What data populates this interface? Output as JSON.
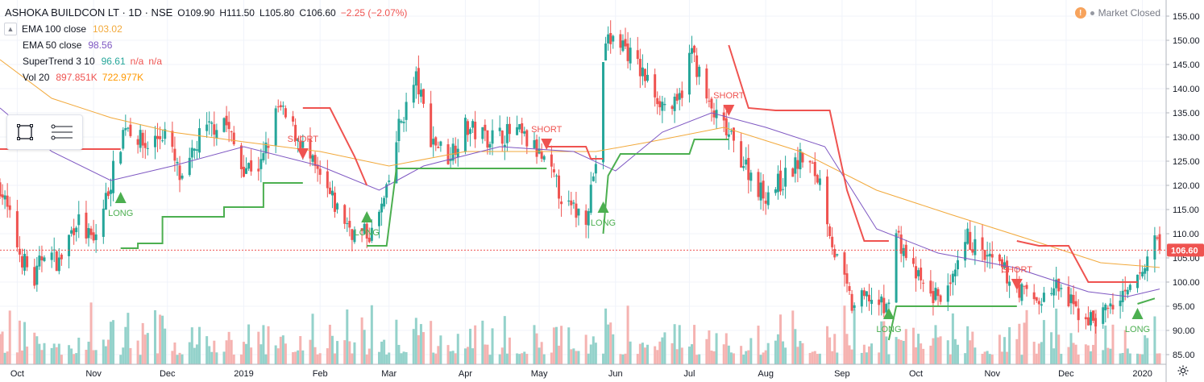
{
  "header": {
    "title": "ASHOKA BUILDCON LT · 1D · NSE",
    "ohlc": [
      {
        "k": "O",
        "v": "109.90"
      },
      {
        "k": "H",
        "v": "111.50"
      },
      {
        "k": "L",
        "v": "105.80"
      },
      {
        "k": "C",
        "v": "106.60"
      }
    ],
    "change": "−2.25 (−2.07%)",
    "change_color": "#ef5350"
  },
  "indicators": [
    {
      "label": "EMA 100 close",
      "values": [
        "103.02"
      ],
      "color": "#f2a93b"
    },
    {
      "label": "EMA 50 close",
      "values": [
        "98.56"
      ],
      "color": "#7e57c2"
    },
    {
      "label": "SuperTrend 3 10",
      "values": [
        "96.61",
        "n/a",
        "n/a"
      ],
      "colors": [
        "#26a69a",
        "#ef5350",
        "#ef5350"
      ]
    },
    {
      "label": "Vol 20",
      "values": [
        "897.851K",
        "722.977K"
      ],
      "colors": [
        "#ef5350",
        "#ff9800"
      ]
    }
  ],
  "status": {
    "market": "Market Closed"
  },
  "icons": {
    "rectangle_tool": "rectangle-icon",
    "lines_tool": "lines-icon",
    "settings": "gear-icon"
  },
  "colors": {
    "up": "#26a69a",
    "down": "#ef5350",
    "ema100": "#f2a93b",
    "ema50": "#7e57c2",
    "st_up": "#4caf50",
    "st_down": "#ef5350",
    "vol_up": "#94d2cb",
    "vol_down": "#f5b3b1",
    "last_price_bg": "#ef5350"
  },
  "chart_data": {
    "type": "candlestick",
    "symbol": "ASHOKA BUILDCON LT",
    "interval": "1D",
    "exchange": "NSE",
    "ylim": [
      83,
      157
    ],
    "y_ticks": [
      85,
      90,
      95,
      100,
      105,
      110,
      115,
      120,
      125,
      130,
      135,
      140,
      145,
      150,
      155
    ],
    "last_price": 106.6,
    "x_range": [
      "2018-09-24",
      "2020-01-08"
    ],
    "x_ticks": [
      {
        "date": "2018-10-01",
        "label": "Oct"
      },
      {
        "date": "2018-11-01",
        "label": "Nov"
      },
      {
        "date": "2018-12-01",
        "label": "Dec"
      },
      {
        "date": "2019-01-01",
        "label": "2019"
      },
      {
        "date": "2019-02-01",
        "label": "Feb"
      },
      {
        "date": "2019-03-01",
        "label": "Mar"
      },
      {
        "date": "2019-04-01",
        "label": "Apr"
      },
      {
        "date": "2019-05-01",
        "label": "May"
      },
      {
        "date": "2019-06-01",
        "label": "Jun"
      },
      {
        "date": "2019-07-01",
        "label": "Jul"
      },
      {
        "date": "2019-08-01",
        "label": "Aug"
      },
      {
        "date": "2019-09-01",
        "label": "Sep"
      },
      {
        "date": "2019-10-01",
        "label": "Oct"
      },
      {
        "date": "2019-11-01",
        "label": "Nov"
      },
      {
        "date": "2019-12-01",
        "label": "Dec"
      },
      {
        "date": "2020-01-01",
        "label": "2020"
      }
    ],
    "close_path": [
      {
        "date": "2018-09-24",
        "close": 120
      },
      {
        "date": "2018-10-02",
        "close": 106
      },
      {
        "date": "2018-10-08",
        "close": 100
      },
      {
        "date": "2018-10-12",
        "close": 107
      },
      {
        "date": "2018-10-18",
        "close": 104
      },
      {
        "date": "2018-10-25",
        "close": 113
      },
      {
        "date": "2018-11-01",
        "close": 108
      },
      {
        "date": "2018-11-08",
        "close": 121
      },
      {
        "date": "2018-11-14",
        "close": 133
      },
      {
        "date": "2018-11-22",
        "close": 128
      },
      {
        "date": "2018-11-30",
        "close": 131
      },
      {
        "date": "2018-12-07",
        "close": 120
      },
      {
        "date": "2018-12-14",
        "close": 130
      },
      {
        "date": "2018-12-24",
        "close": 134
      },
      {
        "date": "2018-12-31",
        "close": 124
      },
      {
        "date": "2019-01-08",
        "close": 124
      },
      {
        "date": "2019-01-15",
        "close": 136
      },
      {
        "date": "2019-01-23",
        "close": 130
      },
      {
        "date": "2019-01-31",
        "close": 122
      },
      {
        "date": "2019-02-08",
        "close": 115
      },
      {
        "date": "2019-02-15",
        "close": 110
      },
      {
        "date": "2019-02-22",
        "close": 110
      },
      {
        "date": "2019-02-28",
        "close": 118
      },
      {
        "date": "2019-03-05",
        "close": 132
      },
      {
        "date": "2019-03-12",
        "close": 142
      },
      {
        "date": "2019-03-18",
        "close": 130
      },
      {
        "date": "2019-03-25",
        "close": 126
      },
      {
        "date": "2019-04-01",
        "close": 132
      },
      {
        "date": "2019-04-10",
        "close": 130
      },
      {
        "date": "2019-04-22",
        "close": 131
      },
      {
        "date": "2019-04-30",
        "close": 127
      },
      {
        "date": "2019-05-06",
        "close": 122
      },
      {
        "date": "2019-05-13",
        "close": 115
      },
      {
        "date": "2019-05-20",
        "close": 114
      },
      {
        "date": "2019-05-24",
        "close": 125
      },
      {
        "date": "2019-05-28",
        "close": 150
      },
      {
        "date": "2019-06-03",
        "close": 150
      },
      {
        "date": "2019-06-12",
        "close": 143
      },
      {
        "date": "2019-06-20",
        "close": 137
      },
      {
        "date": "2019-06-26",
        "close": 136
      },
      {
        "date": "2019-07-02",
        "close": 148
      },
      {
        "date": "2019-07-09",
        "close": 136
      },
      {
        "date": "2019-07-16",
        "close": 131
      },
      {
        "date": "2019-07-24",
        "close": 124
      },
      {
        "date": "2019-07-31",
        "close": 118
      },
      {
        "date": "2019-08-08",
        "close": 121
      },
      {
        "date": "2019-08-16",
        "close": 126
      },
      {
        "date": "2019-08-23",
        "close": 121
      },
      {
        "date": "2019-08-29",
        "close": 106
      },
      {
        "date": "2019-09-05",
        "close": 95
      },
      {
        "date": "2019-09-12",
        "close": 97
      },
      {
        "date": "2019-09-19",
        "close": 94
      },
      {
        "date": "2019-09-23",
        "close": 110
      },
      {
        "date": "2019-09-30",
        "close": 102
      },
      {
        "date": "2019-10-07",
        "close": 97
      },
      {
        "date": "2019-10-15",
        "close": 98
      },
      {
        "date": "2019-10-22",
        "close": 109
      },
      {
        "date": "2019-10-29",
        "close": 105
      },
      {
        "date": "2019-11-06",
        "close": 102
      },
      {
        "date": "2019-11-13",
        "close": 98
      },
      {
        "date": "2019-11-20",
        "close": 96
      },
      {
        "date": "2019-11-27",
        "close": 99
      },
      {
        "date": "2019-12-05",
        "close": 94
      },
      {
        "date": "2019-12-12",
        "close": 92
      },
      {
        "date": "2019-12-19",
        "close": 95
      },
      {
        "date": "2019-12-26",
        "close": 97
      },
      {
        "date": "2020-01-02",
        "close": 103
      },
      {
        "date": "2020-01-06",
        "close": 110
      },
      {
        "date": "2020-01-08",
        "close": 106.6
      }
    ],
    "ema_100": [
      {
        "date": "2018-09-24",
        "value": 146
      },
      {
        "date": "2018-10-15",
        "value": 138
      },
      {
        "date": "2018-11-08",
        "value": 134
      },
      {
        "date": "2018-12-03",
        "value": 131
      },
      {
        "date": "2019-01-01",
        "value": 129
      },
      {
        "date": "2019-02-01",
        "value": 127
      },
      {
        "date": "2019-03-01",
        "value": 124
      },
      {
        "date": "2019-04-01",
        "value": 127
      },
      {
        "date": "2019-05-01",
        "value": 127
      },
      {
        "date": "2019-05-24",
        "value": 127
      },
      {
        "date": "2019-06-15",
        "value": 129
      },
      {
        "date": "2019-07-15",
        "value": 132
      },
      {
        "date": "2019-08-15",
        "value": 127
      },
      {
        "date": "2019-09-15",
        "value": 119
      },
      {
        "date": "2019-10-15",
        "value": 114
      },
      {
        "date": "2019-11-15",
        "value": 109
      },
      {
        "date": "2019-12-15",
        "value": 104
      },
      {
        "date": "2020-01-08",
        "value": 103.02
      }
    ],
    "ema_50": [
      {
        "date": "2018-09-24",
        "value": 136
      },
      {
        "date": "2018-10-15",
        "value": 127
      },
      {
        "date": "2018-11-08",
        "value": 121
      },
      {
        "date": "2018-12-03",
        "value": 124
      },
      {
        "date": "2019-01-01",
        "value": 128
      },
      {
        "date": "2019-02-01",
        "value": 124
      },
      {
        "date": "2019-02-25",
        "value": 119
      },
      {
        "date": "2019-03-15",
        "value": 124
      },
      {
        "date": "2019-04-15",
        "value": 128
      },
      {
        "date": "2019-05-15",
        "value": 127
      },
      {
        "date": "2019-06-01",
        "value": 123
      },
      {
        "date": "2019-06-20",
        "value": 131
      },
      {
        "date": "2019-07-10",
        "value": 135
      },
      {
        "date": "2019-08-01",
        "value": 132
      },
      {
        "date": "2019-08-25",
        "value": 128
      },
      {
        "date": "2019-09-15",
        "value": 111
      },
      {
        "date": "2019-10-10",
        "value": 106
      },
      {
        "date": "2019-11-10",
        "value": 103
      },
      {
        "date": "2019-12-10",
        "value": 98
      },
      {
        "date": "2019-12-26",
        "value": 97
      },
      {
        "date": "2020-01-08",
        "value": 98.56
      }
    ],
    "supertrend": [
      {
        "trend": "down",
        "points": [
          [
            "2018-09-24",
            127.5
          ],
          [
            "2018-11-12",
            127.5
          ]
        ]
      },
      {
        "trend": "up",
        "points": [
          [
            "2018-11-12",
            107
          ],
          [
            "2018-11-19",
            107
          ],
          [
            "2018-11-19",
            108
          ],
          [
            "2018-11-29",
            108
          ],
          [
            "2018-11-29",
            113.5
          ],
          [
            "2018-12-24",
            113.5
          ],
          [
            "2018-12-24",
            115.5
          ],
          [
            "2019-01-09",
            115.5
          ],
          [
            "2019-01-09",
            120.5
          ],
          [
            "2019-01-25",
            120.5
          ]
        ]
      },
      {
        "trend": "down",
        "points": [
          [
            "2019-01-25",
            136
          ],
          [
            "2019-02-05",
            136
          ],
          [
            "2019-02-15",
            126
          ],
          [
            "2019-02-20",
            120
          ]
        ]
      },
      {
        "trend": "up",
        "points": [
          [
            "2019-02-20",
            107.5
          ],
          [
            "2019-02-28",
            107.5
          ],
          [
            "2019-03-04",
            123.5
          ],
          [
            "2019-04-18",
            123.5
          ],
          [
            "2019-05-04",
            123.5
          ]
        ]
      },
      {
        "trend": "down",
        "points": [
          [
            "2019-05-04",
            128
          ],
          [
            "2019-05-20",
            128
          ],
          [
            "2019-05-22",
            125.5
          ],
          [
            "2019-05-27",
            125.5
          ]
        ]
      },
      {
        "trend": "up",
        "points": [
          [
            "2019-05-27",
            110
          ],
          [
            "2019-05-29",
            122
          ],
          [
            "2019-06-03",
            126.5
          ],
          [
            "2019-07-01",
            126.5
          ],
          [
            "2019-07-03",
            129.5
          ],
          [
            "2019-07-17",
            129.5
          ]
        ]
      },
      {
        "trend": "down",
        "points": [
          [
            "2019-07-17",
            149
          ],
          [
            "2019-07-25",
            136
          ],
          [
            "2019-08-05",
            135.5
          ],
          [
            "2019-08-27",
            135.5
          ],
          [
            "2019-09-03",
            119
          ],
          [
            "2019-09-10",
            108.5
          ],
          [
            "2019-09-20",
            108.5
          ]
        ]
      },
      {
        "trend": "up",
        "points": [
          [
            "2019-09-20",
            88
          ],
          [
            "2019-09-23",
            95
          ],
          [
            "2019-11-11",
            95
          ]
        ]
      },
      {
        "trend": "down",
        "points": [
          [
            "2019-11-11",
            108.5
          ],
          [
            "2019-11-20",
            107.5
          ],
          [
            "2019-12-02",
            107.5
          ],
          [
            "2019-12-10",
            100
          ],
          [
            "2019-12-30",
            100
          ]
        ]
      },
      {
        "trend": "up",
        "points": [
          [
            "2019-12-30",
            95.5
          ],
          [
            "2020-01-06",
            96.61
          ]
        ]
      }
    ],
    "signals": [
      {
        "type": "LONG",
        "date": "2018-11-12",
        "value": 118
      },
      {
        "type": "SHORT",
        "date": "2019-01-25",
        "value": 126
      },
      {
        "type": "LONG",
        "date": "2019-02-20",
        "value": 114
      },
      {
        "type": "SHORT",
        "date": "2019-05-04",
        "value": 128
      },
      {
        "type": "LONG",
        "date": "2019-05-27",
        "value": 116
      },
      {
        "type": "SHORT",
        "date": "2019-07-17",
        "value": 135
      },
      {
        "type": "LONG",
        "date": "2019-09-20",
        "value": 94
      },
      {
        "type": "SHORT",
        "date": "2019-11-11",
        "value": 99
      },
      {
        "type": "LONG",
        "date": "2019-12-30",
        "value": 94
      }
    ],
    "volume": {
      "last_value": "897.851K",
      "ma20": "722.977K"
    }
  }
}
